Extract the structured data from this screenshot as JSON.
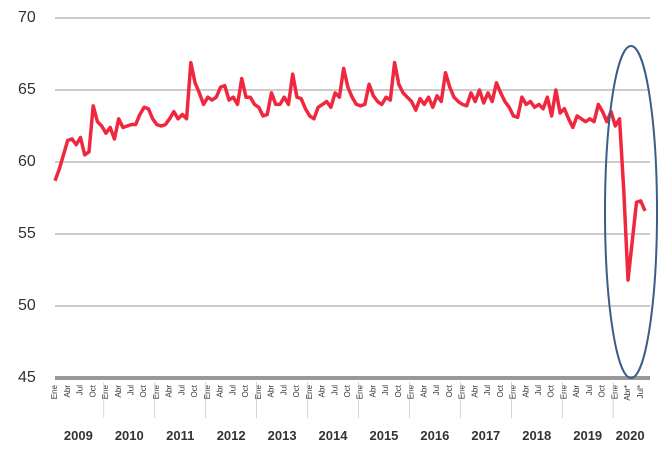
{
  "chart_data": {
    "type": "line",
    "categories": [
      "Ene",
      null,
      null,
      "Abr",
      null,
      null,
      "Jul",
      null,
      null,
      "Oct",
      null,
      null,
      "Ene",
      null,
      null,
      "Abr",
      null,
      null,
      "Jul",
      null,
      null,
      "Oct",
      null,
      null,
      "Ene",
      null,
      null,
      "Abr",
      null,
      null,
      "Jul",
      null,
      null,
      "Oct",
      null,
      null,
      "Ene",
      null,
      null,
      "Abr",
      null,
      null,
      "Jul",
      null,
      null,
      "Oct",
      null,
      null,
      "Ene",
      null,
      null,
      "Abr",
      null,
      null,
      "Jul",
      null,
      null,
      "Oct",
      null,
      null,
      "Ene",
      null,
      null,
      "Abr",
      null,
      null,
      "Jul",
      null,
      null,
      "Oct",
      null,
      null,
      "Ene",
      null,
      null,
      "Abr",
      null,
      null,
      "Jul",
      null,
      null,
      "Oct",
      null,
      null,
      "Ene",
      null,
      null,
      "Abr",
      null,
      null,
      "Jul",
      null,
      null,
      "Oct",
      null,
      null,
      "Ene",
      null,
      null,
      "Abr",
      null,
      null,
      "Jul",
      null,
      null,
      "Oct",
      null,
      null,
      "Ene",
      null,
      null,
      "Abr",
      null,
      null,
      "Jul",
      null,
      null,
      "Oct",
      null,
      null,
      "Ene",
      null,
      null,
      "Abr",
      null,
      null,
      "Jul",
      null,
      null,
      "Oct",
      null,
      null,
      "Ene",
      null,
      null,
      "Abr*",
      null,
      null,
      "Jul*",
      null
    ],
    "years": [
      "2009",
      "2010",
      "2011",
      "2012",
      "2013",
      "2014",
      "2015",
      "2016",
      "2017",
      "2018",
      "2019",
      "2020"
    ],
    "series": [
      {
        "color": "#f0283f",
        "values": [
          58.7,
          59.5,
          60.5,
          61.5,
          61.6,
          61.2,
          61.7,
          60.5,
          60.7,
          63.9,
          62.8,
          62.5,
          62.0,
          62.4,
          61.6,
          63.0,
          62.4,
          62.5,
          62.6,
          62.6,
          63.3,
          63.8,
          63.7,
          63.0,
          62.6,
          62.5,
          62.6,
          63.0,
          63.5,
          63.0,
          63.3,
          63.0,
          66.9,
          65.5,
          64.8,
          64.0,
          64.5,
          64.3,
          64.5,
          65.2,
          65.3,
          64.3,
          64.5,
          64.0,
          65.8,
          64.5,
          64.5,
          64.0,
          63.8,
          63.2,
          63.3,
          64.8,
          64.0,
          64.0,
          64.5,
          64.0,
          66.1,
          64.5,
          64.4,
          63.7,
          63.2,
          63.0,
          63.8,
          64.0,
          64.2,
          63.8,
          64.8,
          64.5,
          66.5,
          65.2,
          64.5,
          64.0,
          63.9,
          64.0,
          65.4,
          64.6,
          64.2,
          64.0,
          64.5,
          64.3,
          66.9,
          65.4,
          64.8,
          64.5,
          64.2,
          63.6,
          64.4,
          64.0,
          64.5,
          63.8,
          64.6,
          64.2,
          66.2,
          65.2,
          64.5,
          64.2,
          64.0,
          63.9,
          64.8,
          64.2,
          65.0,
          64.1,
          64.8,
          64.2,
          65.5,
          64.8,
          64.2,
          63.8,
          63.2,
          63.1,
          64.5,
          64.0,
          64.2,
          63.8,
          64.0,
          63.7,
          64.5,
          63.2,
          65.0,
          63.4,
          63.7,
          63.0,
          62.4,
          63.2,
          63.0,
          62.8,
          63.0,
          62.8,
          64.0,
          63.5,
          62.8,
          63.5,
          62.5,
          63.0,
          58.0,
          51.8,
          54.5,
          57.2,
          57.3,
          56.6
        ]
      }
    ],
    "ylim": [
      45,
      70
    ],
    "yticks": [
      45,
      50,
      55,
      60,
      65,
      70
    ],
    "grid": true
  }
}
